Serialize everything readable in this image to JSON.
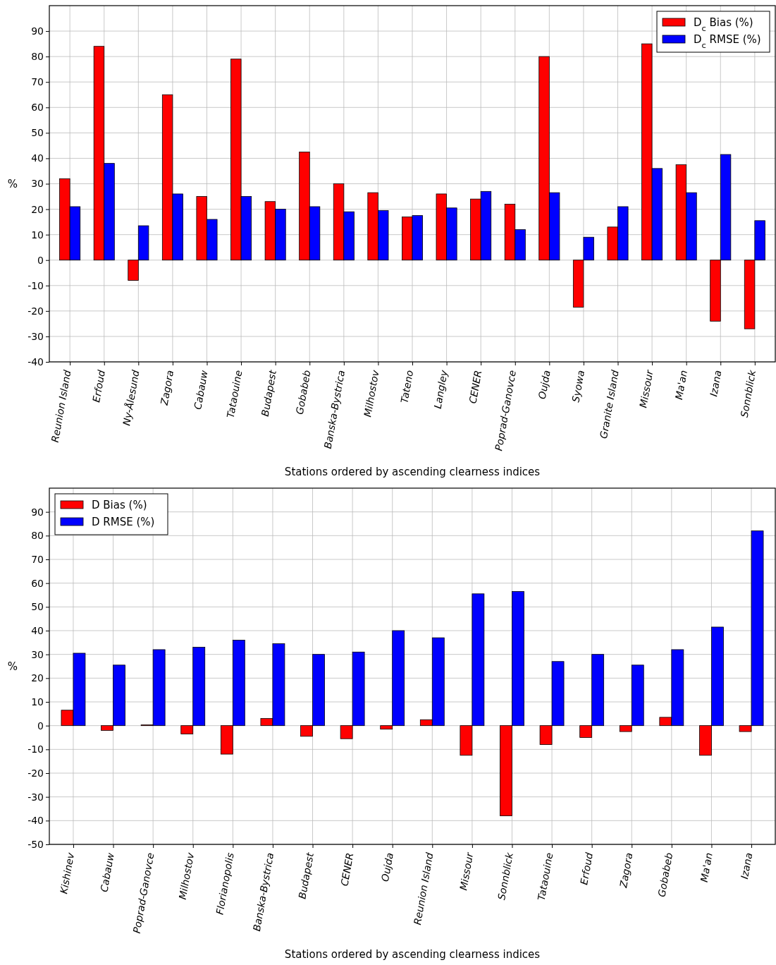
{
  "chart_data": [
    {
      "type": "bar",
      "xlabel": "Stations ordered by ascending clearness indices",
      "ylabel": "%",
      "categories": [
        "Reunion Island",
        "Erfoud",
        "Ny-Ålesund",
        "Zagora",
        "Cabauw",
        "Tataouine",
        "Budapest",
        "Gobabeb",
        "Banska-Bystrica",
        "Milhostov",
        "Tateno",
        "Langley",
        "CENER",
        "Poprad-Ganovce",
        "Oujda",
        "Syowa",
        "Granite Island",
        "Missour",
        "Ma'an",
        "Izana",
        "Sonnblick"
      ],
      "series": [
        {
          "name": "D$_{c}$ Bias (%)",
          "color": "#ff0000",
          "values": [
            32,
            84,
            -8,
            65,
            25,
            79,
            23,
            42.5,
            30,
            26.5,
            17,
            26,
            24,
            22,
            80,
            -18.5,
            13,
            85,
            37.5,
            -24,
            -27
          ]
        },
        {
          "name": "D$_{c}$ RMSE (%)",
          "color": "#0000ff",
          "values": [
            21,
            38,
            13.5,
            26,
            16,
            25,
            20,
            21,
            19,
            19.5,
            17.5,
            20.5,
            27,
            12,
            26.5,
            9,
            21,
            36,
            26.5,
            41.5,
            15.5
          ]
        }
      ],
      "ylim": [
        -40,
        100
      ],
      "yticks": [
        -40,
        -30,
        -20,
        -10,
        0,
        10,
        20,
        30,
        40,
        50,
        60,
        70,
        80,
        90
      ],
      "grid": true,
      "legend": "top right"
    },
    {
      "type": "bar",
      "xlabel": "Stations ordered by ascending clearness indices",
      "ylabel": "%",
      "categories": [
        "Kishinev",
        "Cabauw",
        "Poprad-Ganovce",
        "Milhostov",
        "Florianopolis",
        "Banska-Bystrica",
        "Budapest",
        "CENER",
        "Oujda",
        "Reunion Island",
        "Missour",
        "Sonnblick",
        "Tataouine",
        "Erfoud",
        "Zagora",
        "Gobabeb",
        "Ma'an",
        "Izana"
      ],
      "series": [
        {
          "name": "D Bias (%)",
          "color": "#ff0000",
          "values": [
            6.5,
            -2,
            0.3,
            -3.5,
            -12,
            3,
            -4.5,
            -5.5,
            -1.5,
            2.5,
            -12.5,
            -38,
            -8,
            -5,
            -2.5,
            3.5,
            -12.5,
            -2.5
          ]
        },
        {
          "name": "D RMSE (%)",
          "color": "#0000ff",
          "values": [
            30.5,
            25.5,
            32,
            33,
            36,
            34.5,
            30,
            31,
            40,
            37,
            55.5,
            56.5,
            27,
            30,
            25.5,
            32,
            41.5,
            82
          ]
        }
      ],
      "ylim": [
        -50,
        100
      ],
      "yticks": [
        -50,
        -40,
        -30,
        -20,
        -10,
        0,
        10,
        20,
        30,
        40,
        50,
        60,
        70,
        80,
        90
      ],
      "grid": true,
      "legend": "top left"
    }
  ]
}
